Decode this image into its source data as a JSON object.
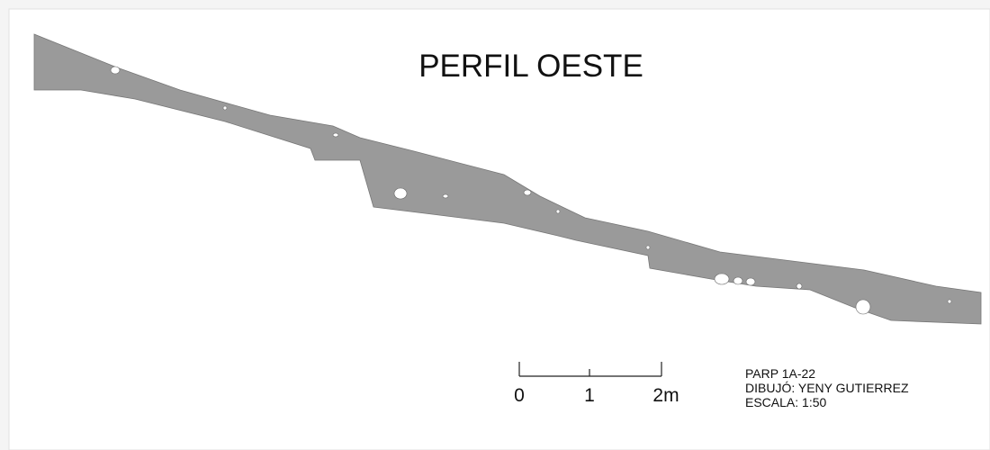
{
  "title": "PERFIL OESTE",
  "scale_bar": {
    "labels": [
      "0",
      "1",
      "2m"
    ]
  },
  "notes": [
    "PARP 1A-22",
    "DIBUJÓ: YENY GUTIERREZ",
    "ESCALA: 1:50"
  ]
}
